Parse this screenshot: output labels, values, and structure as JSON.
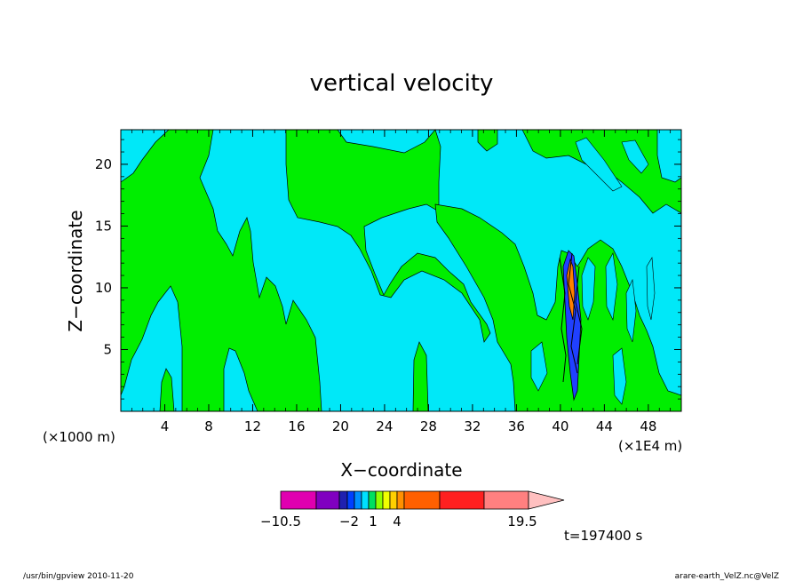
{
  "chart_data": {
    "type": "heatmap",
    "title": "vertical velocity",
    "xlabel": "X−coordinate",
    "ylabel": "Z−coordinate",
    "x_unit_left": "(×1000 m)",
    "x_unit_right": "(×1E4 m)",
    "x_ticks": [
      4,
      8,
      12,
      16,
      20,
      24,
      28,
      32,
      36,
      40,
      44,
      48
    ],
    "y_ticks": [
      5,
      10,
      15,
      20
    ],
    "xlim": [
      0,
      51
    ],
    "ylim": [
      0,
      22.8
    ],
    "grid": false,
    "time_label": "t=197400 s",
    "colorbar": {
      "tick_labels": [
        "−10.5",
        "−2",
        "1",
        "4",
        "19.5"
      ],
      "colors": [
        "#e000b0",
        "#8000c0",
        "#2020b0",
        "#0040ff",
        "#0090ff",
        "#00e0ff",
        "#00e060",
        "#90ff00",
        "#f0ff00",
        "#ffd000",
        "#ff9000",
        "#ff6000",
        "#ff2020",
        "#ff8080",
        "#ffc0c0"
      ]
    },
    "field_colors": {
      "background": "#00e8f8",
      "positive": "#00ee00",
      "strong_negative": "#2040ff",
      "strong_positive": "#ff8000"
    }
  },
  "footer": {
    "left": "/usr/bin/gpview   2010-11-20",
    "right": "arare-earth_VelZ.nc@VelZ"
  }
}
